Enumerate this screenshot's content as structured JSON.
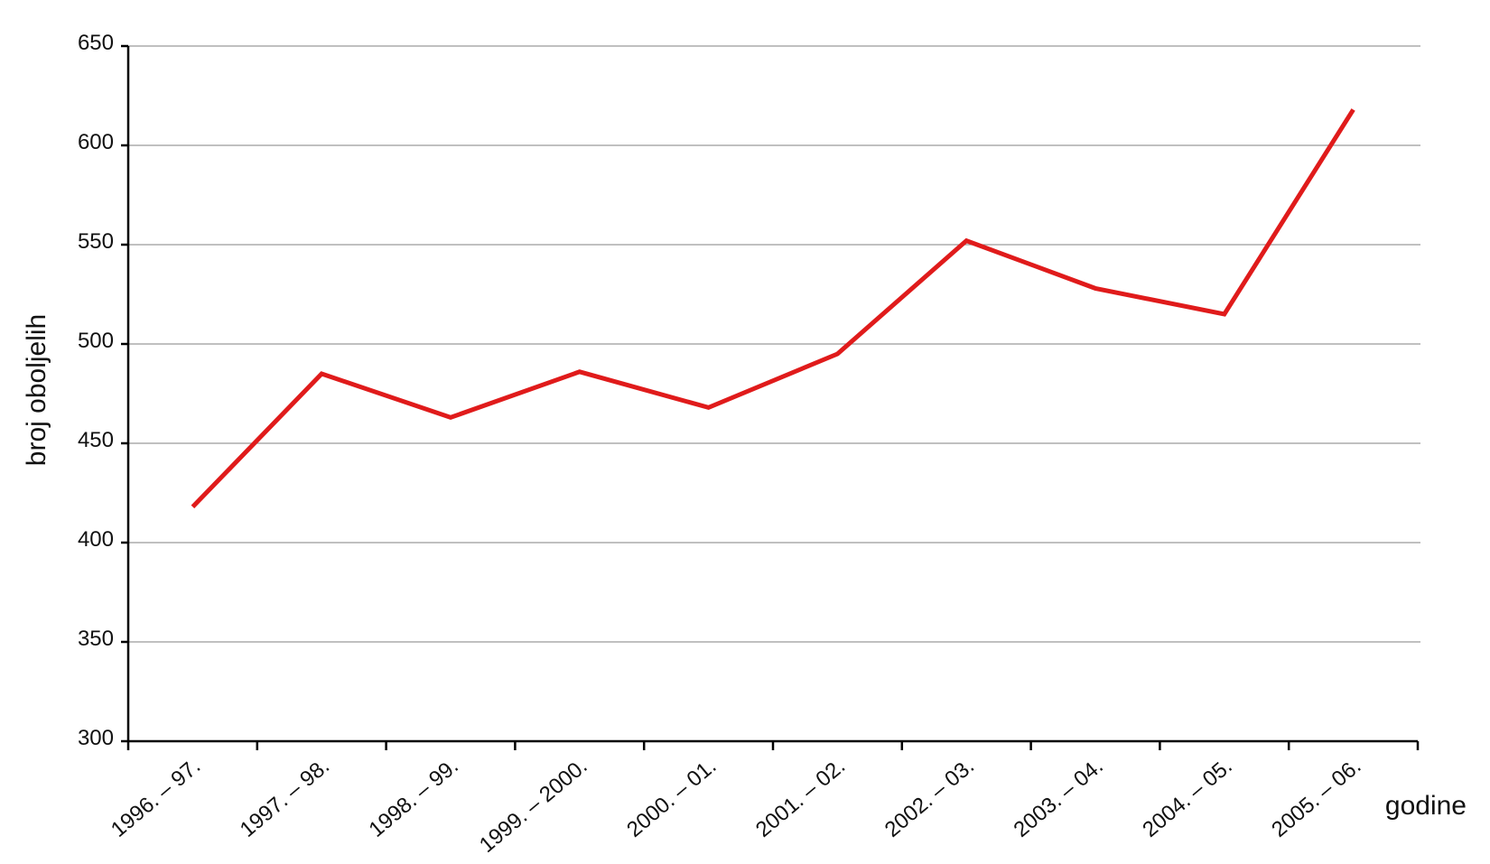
{
  "chart_data": {
    "type": "line",
    "x_label": "godine",
    "y_label": "broj oboljelih",
    "categories": [
      "1996. – 97.",
      "1997. – 98.",
      "1998. – 99.",
      "1999. – 2000.",
      "2000. – 01.",
      "2001. – 02.",
      "2002. – 03.",
      "2003. – 04.",
      "2004. – 05.",
      "2005. – 06."
    ],
    "series": [
      {
        "name": "broj oboljelih",
        "color": "#e01b1b",
        "values": [
          418,
          485,
          463,
          486,
          468,
          495,
          552,
          528,
          515,
          618
        ]
      }
    ],
    "ylim": [
      300,
      650
    ],
    "yticks": [
      300,
      350,
      400,
      450,
      500,
      550,
      600,
      650
    ],
    "grid": true
  }
}
